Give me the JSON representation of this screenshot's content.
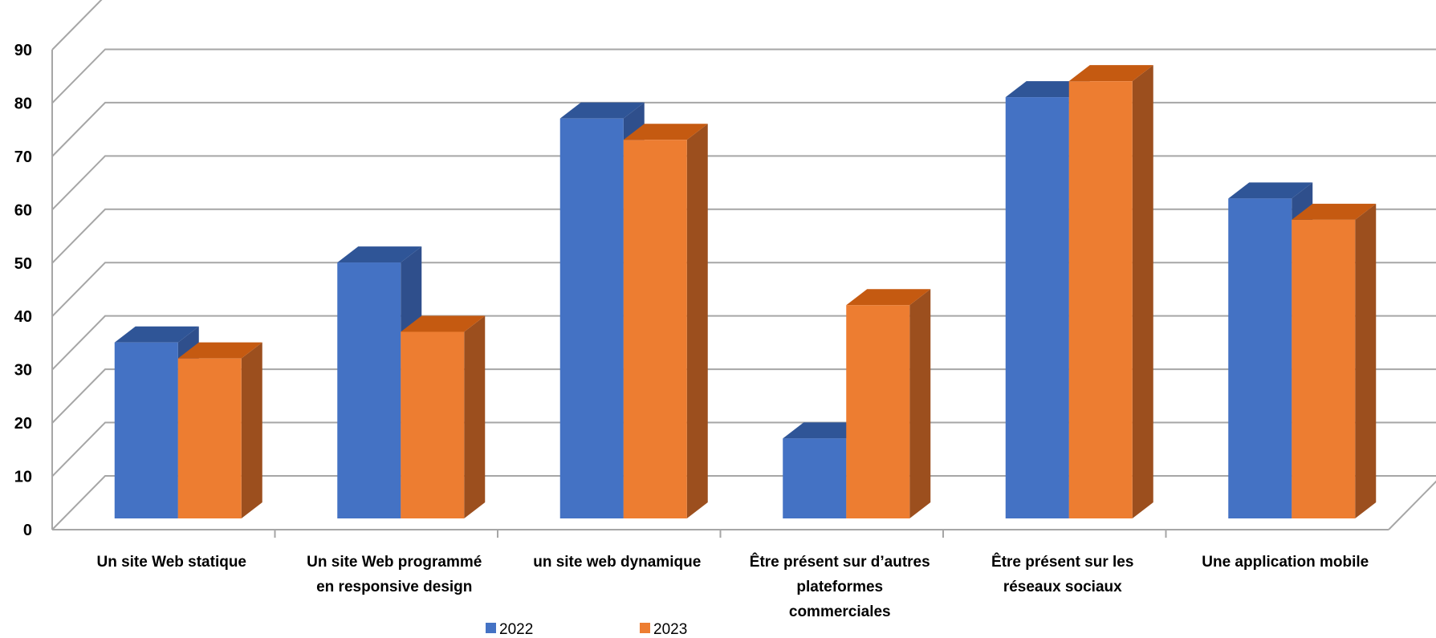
{
  "chart_data": {
    "type": "bar",
    "categories": [
      [
        "Un site Web statique"
      ],
      [
        "Un site Web programmé",
        "en responsive design"
      ],
      [
        "un site web dynamique"
      ],
      [
        "Être présent sur d’autres",
        "plateformes",
        "commerciales"
      ],
      [
        "Être présent sur les",
        "réseaux sociaux"
      ],
      [
        "Une application mobile"
      ]
    ],
    "series": [
      {
        "name": "2022",
        "values": [
          33,
          48,
          75,
          15,
          79,
          60
        ],
        "color": "#4472C4",
        "top_color": "#2F5597",
        "side_color": "#2F4F8C"
      },
      {
        "name": "2023",
        "values": [
          30,
          35,
          71,
          40,
          82,
          56
        ],
        "color": "#ED7D31",
        "top_color": "#C55A11",
        "side_color": "#9C4F1E"
      }
    ],
    "yticks": [
      "0",
      "10",
      "20",
      "30",
      "40",
      "50",
      "60",
      "70",
      "80",
      "90"
    ],
    "ylim": [
      0,
      90
    ],
    "grid": true,
    "legend_position": "bottom",
    "projection": "3d-clustered-column"
  }
}
